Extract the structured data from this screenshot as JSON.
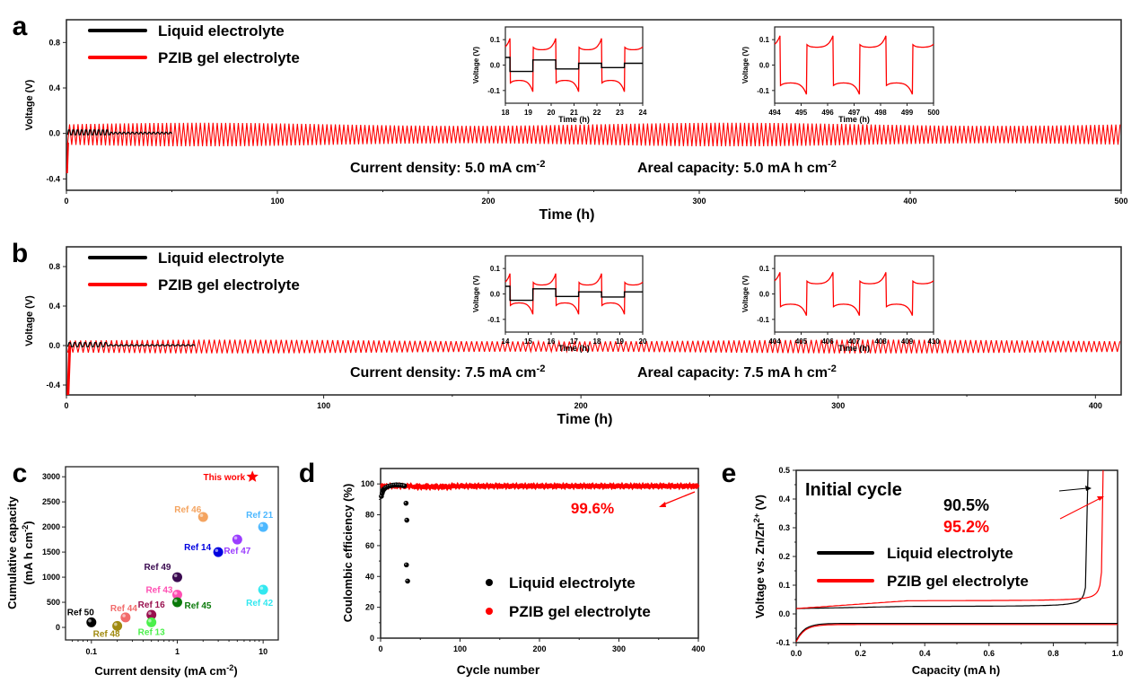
{
  "colors": {
    "liquid": "#000000",
    "gel": "#ff0000",
    "axis": "#222222"
  },
  "chart_data": [
    {
      "panel": "a",
      "type": "line",
      "xlabel": "Time (h)",
      "ylabel": "Voltage (V)",
      "xlim": [
        0,
        500
      ],
      "ylim": [
        -0.5,
        1.0
      ],
      "xticks": [
        0,
        100,
        200,
        300,
        400,
        500
      ],
      "yticks": [
        -0.4,
        0.0,
        0.4,
        0.8
      ],
      "legend": [
        "Liquid electrolyte",
        "PZIB gel electrolyte"
      ],
      "legend_position": "top-left",
      "annotation_1": {
        "prefix": "Current density: 5.0 mA cm",
        "sup": "-2"
      },
      "annotation_2": {
        "prefix": "Areal capacity: 5.0 mA h cm",
        "sup": "-2"
      },
      "series": [
        {
          "name": "Liquid electrolyte",
          "x_end": 50,
          "amplitude_early": 0.03,
          "amplitude_late": 0.01,
          "transition": 21
        },
        {
          "name": "PZIB gel electrolyte",
          "x_end": 500,
          "amplitude": 0.09,
          "period_h": 2
        }
      ],
      "insets": [
        {
          "xlim": [
            18,
            24
          ],
          "xticks": [
            18,
            19,
            20,
            21,
            22,
            23,
            24
          ],
          "ylim": [
            -0.15,
            0.15
          ],
          "yticks": [
            -0.1,
            0.0,
            0.1
          ],
          "xlabel": "Time (h)",
          "ylabel": "Voltage (V)",
          "gel_amp": 0.06,
          "liquid_levels": [
            0.03,
            -0.025,
            0.02,
            -0.015,
            0.007,
            -0.01,
            0.007
          ]
        },
        {
          "xlim": [
            494,
            500
          ],
          "xticks": [
            494,
            495,
            496,
            497,
            498,
            499,
            500
          ],
          "ylim": [
            -0.15,
            0.15
          ],
          "yticks": [
            -0.1,
            0.0,
            0.1
          ],
          "xlabel": "Time (h)",
          "ylabel": "Voltage (V)",
          "gel_amp": 0.07
        }
      ]
    },
    {
      "panel": "b",
      "type": "line",
      "xlabel": "Time (h)",
      "ylabel": "Voltage (V)",
      "xlim": [
        0,
        410
      ],
      "ylim": [
        -0.5,
        1.0
      ],
      "xticks": [
        0,
        100,
        200,
        300,
        400
      ],
      "yticks": [
        -0.4,
        0.0,
        0.4,
        0.8
      ],
      "legend": [
        "Liquid electrolyte",
        "PZIB gel electrolyte"
      ],
      "legend_position": "top-left",
      "annotation_1": {
        "prefix": "Current density: 7.5 mA cm",
        "sup": "-2"
      },
      "annotation_2": {
        "prefix": "Areal capacity: 7.5 mA h cm",
        "sup": "-2"
      },
      "series": [
        {
          "name": "Liquid electrolyte",
          "x_end": 50,
          "amplitude_early": 0.03,
          "amplitude_late": 0.008,
          "transition": 16
        },
        {
          "name": "PZIB gel electrolyte",
          "x_end": 410,
          "amplitude": 0.06,
          "period_h": 2,
          "initial_dip": -0.5
        }
      ],
      "insets": [
        {
          "xlim": [
            14,
            20
          ],
          "xticks": [
            14,
            15,
            16,
            17,
            18,
            19,
            20
          ],
          "ylim": [
            -0.15,
            0.15
          ],
          "yticks": [
            -0.1,
            0.0,
            0.1
          ],
          "xlabel": "Time (h)",
          "ylabel": "Voltage (V)",
          "gel_amp": 0.035,
          "liquid_levels": [
            0.03,
            -0.025,
            0.02,
            -0.01,
            0.008,
            -0.012,
            0.008
          ]
        },
        {
          "xlim": [
            404,
            410
          ],
          "xticks": [
            404,
            405,
            406,
            407,
            408,
            409,
            410
          ],
          "ylim": [
            -0.15,
            0.15
          ],
          "yticks": [
            -0.1,
            0.0,
            0.1
          ],
          "xlabel": "Time (h)",
          "ylabel": "Voltage (V)",
          "gel_amp": 0.04
        }
      ]
    },
    {
      "panel": "c",
      "type": "scatter",
      "xlabel": "Current density (mA cm",
      "xlabel_sup": "-2",
      "xlabel_suffix": ")",
      "ylabel_line1": "Cumulative capacity",
      "ylabel_line2": "(mA h cm",
      "ylabel_sup": "-2",
      "ylabel_suffix": ")",
      "xscale": "log",
      "xlim": [
        0.05,
        15
      ],
      "ylim": [
        -250,
        3200
      ],
      "xticks": [
        0.1,
        1,
        10
      ],
      "xticklabels": [
        "0.1",
        "1",
        "10"
      ],
      "yticks": [
        0,
        500,
        1000,
        1500,
        2000,
        2500,
        3000
      ],
      "points": [
        {
          "label": "This work",
          "x": 7.5,
          "y": 3000,
          "color": "#ff0000",
          "marker": "star"
        },
        {
          "label": "Ref 46",
          "x": 2.0,
          "y": 2200,
          "color": "#f4a460"
        },
        {
          "label": "Ref 21",
          "x": 10,
          "y": 2000,
          "color": "#4db8ff"
        },
        {
          "label": "Ref 47",
          "x": 5.0,
          "y": 1750,
          "color": "#9b3dff"
        },
        {
          "label": "Ref 14",
          "x": 3.0,
          "y": 1500,
          "color": "#0000e0"
        },
        {
          "label": "Ref 49",
          "x": 1.0,
          "y": 1000,
          "color": "#3a0a50"
        },
        {
          "label": "Ref 42",
          "x": 10,
          "y": 750,
          "color": "#33e8f0"
        },
        {
          "label": "Ref 43",
          "x": 1.0,
          "y": 650,
          "color": "#ff4fb3"
        },
        {
          "label": "Ref 45",
          "x": 1.0,
          "y": 500,
          "color": "#0a7a0a"
        },
        {
          "label": "Ref 16",
          "x": 0.5,
          "y": 250,
          "color": "#99104f"
        },
        {
          "label": "Ref 44",
          "x": 0.25,
          "y": 200,
          "color": "#f26b6b"
        },
        {
          "label": "Ref 50",
          "x": 0.1,
          "y": 100,
          "color": "#000000"
        },
        {
          "label": "Ref 13",
          "x": 0.5,
          "y": 100,
          "color": "#4cf04c"
        },
        {
          "label": "Ref 48",
          "x": 0.2,
          "y": 30,
          "color": "#a08a10"
        }
      ]
    },
    {
      "panel": "d",
      "type": "scatter",
      "xlabel": "Cycle number",
      "ylabel": "Coulombic efficiency (%)",
      "xlim": [
        0,
        400
      ],
      "ylim": [
        0,
        110
      ],
      "xticks": [
        0,
        100,
        200,
        300,
        400
      ],
      "yticks": [
        0,
        20,
        40,
        60,
        80,
        100
      ],
      "annotation": "99.6%",
      "legend": [
        "Liquid electrolyte",
        "PZIB gel electrolyte"
      ],
      "legend_position": "bottom-right",
      "series": [
        {
          "name": "Liquid electrolyte",
          "color": "#000000",
          "points": [
            [
              1,
              92
            ],
            [
              2,
              94
            ],
            [
              3,
              95.5
            ],
            [
              4,
              96.5
            ],
            [
              5,
              97
            ],
            [
              6,
              97.5
            ],
            [
              8,
              98
            ],
            [
              10,
              98.5
            ],
            [
              12,
              98.8
            ],
            [
              14,
              99
            ],
            [
              16,
              99.2
            ],
            [
              18,
              99.3
            ],
            [
              20,
              99.4
            ],
            [
              22,
              99.2
            ],
            [
              24,
              99.3
            ],
            [
              26,
              99.1
            ],
            [
              28,
              99
            ],
            [
              30,
              98.8
            ],
            [
              32,
              87.5
            ],
            [
              33,
              76.5
            ],
            [
              32.5,
              47.5
            ],
            [
              34,
              37
            ]
          ]
        },
        {
          "name": "PZIB gel electrolyte",
          "color": "#ff0000",
          "start": 96.5,
          "steady": 99.6,
          "cycles": 400
        }
      ]
    },
    {
      "panel": "e",
      "type": "line",
      "title": "Initial cycle",
      "xlabel": "Capacity (mA h)",
      "ylabel": "Voltage vs. Zn/Zn",
      "ylabel_sup": "2+",
      "ylabel_suffix": " (V)",
      "xlim": [
        0,
        1.0
      ],
      "ylim": [
        -0.1,
        0.5
      ],
      "xticks": [
        0.0,
        0.2,
        0.4,
        0.6,
        0.8,
        1.0
      ],
      "yticks": [
        -0.1,
        0.0,
        0.1,
        0.2,
        0.3,
        0.4,
        0.5
      ],
      "legend": [
        "Liquid electrolyte",
        "PZIB gel electrolyte"
      ],
      "legend_position": "center-left",
      "annotations": [
        {
          "text": "90.5%",
          "color": "#000000"
        },
        {
          "text": "95.2%",
          "color": "#ff0000"
        }
      ],
      "series": [
        {
          "name": "Liquid electrolyte",
          "charge_end": 0.905,
          "charge_plateau": 0.025,
          "discharge_plateau": -0.033
        },
        {
          "name": "PZIB gel electrolyte",
          "charge_end": 0.952,
          "charge_plateau": 0.045,
          "discharge_plateau": -0.037
        }
      ]
    }
  ],
  "panel_labels": [
    "a",
    "b",
    "c",
    "d",
    "e"
  ]
}
